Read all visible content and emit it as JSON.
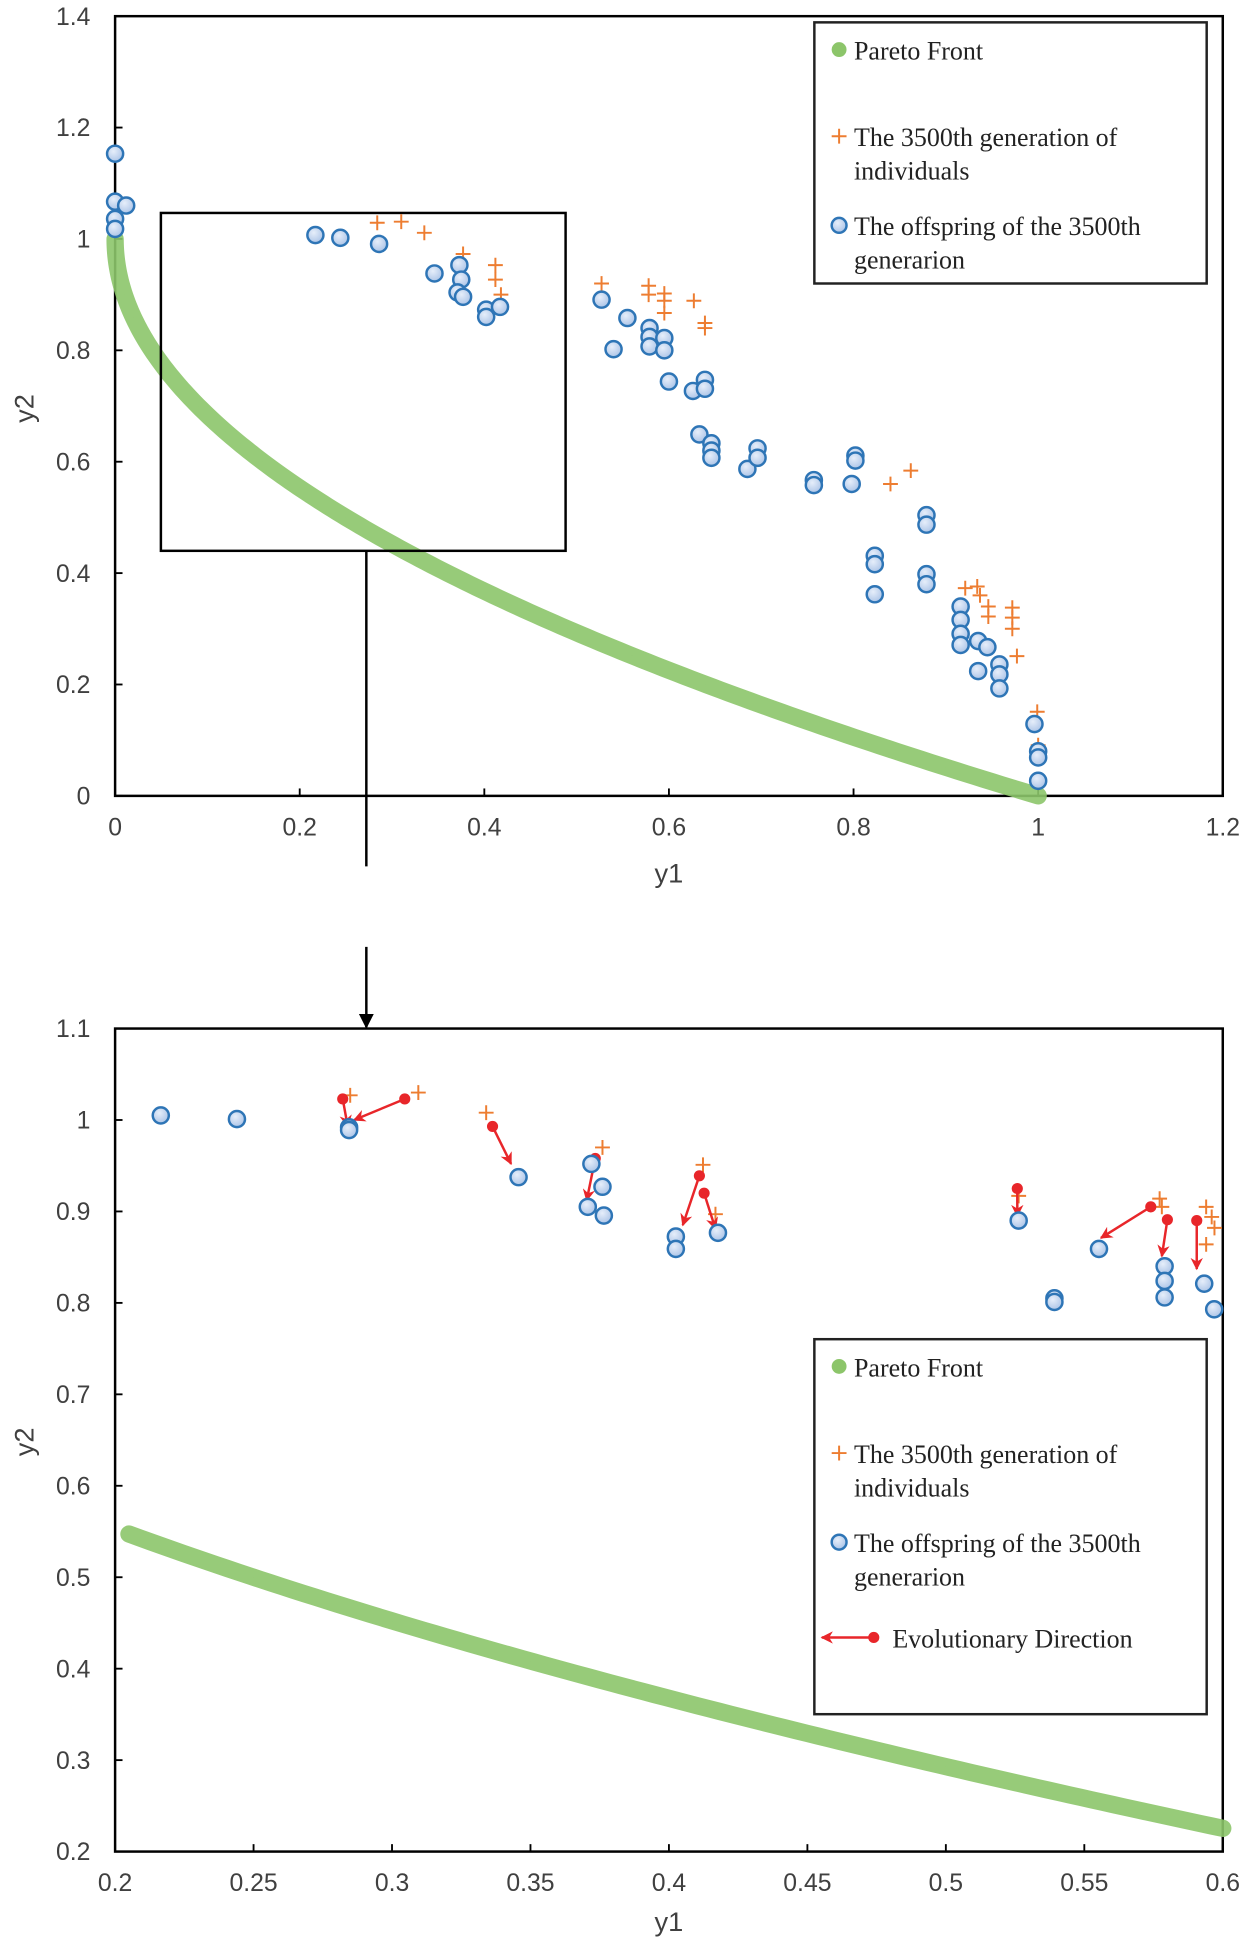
{
  "chart_data": [
    {
      "type": "scatter",
      "xlabel": "y1",
      "ylabel": "y2",
      "xlim": [
        0,
        1.2
      ],
      "ylim": [
        0,
        1.4
      ],
      "xticks": [
        "0",
        "0.2",
        "0.4",
        "0.6",
        "0.8",
        "1",
        "1.2"
      ],
      "yticks": [
        "0",
        "0.2",
        "0.4",
        "0.6",
        "0.8",
        "1",
        "1.2",
        "1.4"
      ],
      "grid": false,
      "legend_position": "top-right",
      "legend": [
        "Pareto Front",
        "The 3500th generation of individuals",
        "The offspring of the 3500th generarion"
      ],
      "zoom_box": {
        "x": [
          0.05,
          0.49
        ],
        "y": [
          0.44,
          1.05
        ]
      },
      "series": [
        {
          "name": "Pareto Front",
          "color": "#8cc56a",
          "points": [
            [
              0,
              1
            ],
            [
              0.01,
              0.9
            ],
            [
              0.02,
              0.859
            ],
            [
              0.04,
              0.8
            ],
            [
              0.06,
              0.755
            ],
            [
              0.09,
              0.7
            ],
            [
              0.12,
              0.654
            ],
            [
              0.16,
              0.6
            ],
            [
              0.2,
              0.553
            ],
            [
              0.25,
              0.5
            ],
            [
              0.3,
              0.452
            ],
            [
              0.36,
              0.4
            ],
            [
              0.42,
              0.352
            ],
            [
              0.49,
              0.3
            ],
            [
              0.56,
              0.252
            ],
            [
              0.64,
              0.2
            ],
            [
              0.72,
              0.151
            ],
            [
              0.81,
              0.1
            ],
            [
              0.9,
              0.051
            ],
            [
              1,
              0
            ]
          ]
        },
        {
          "name": "The 3500th generation of individuals",
          "color": "#ed7d31",
          "points": [
            [
              0.284,
              1.029
            ],
            [
              0.31,
              1.031
            ],
            [
              0.335,
              1.011
            ],
            [
              0.377,
              0.973
            ],
            [
              0.412,
              0.953
            ],
            [
              0.412,
              0.927
            ],
            [
              0.418,
              0.9
            ],
            [
              0.527,
              0.92
            ],
            [
              0.578,
              0.916
            ],
            [
              0.578,
              0.9
            ],
            [
              0.595,
              0.902
            ],
            [
              0.595,
              0.889
            ],
            [
              0.595,
              0.867
            ],
            [
              0.627,
              0.889
            ],
            [
              0.639,
              0.849
            ],
            [
              0.639,
              0.84
            ],
            [
              0.84,
              0.56
            ],
            [
              0.862,
              0.584
            ],
            [
              0.921,
              0.373
            ],
            [
              0.934,
              0.376
            ],
            [
              0.937,
              0.36
            ],
            [
              0.946,
              0.34
            ],
            [
              0.946,
              0.322
            ],
            [
              0.972,
              0.338
            ],
            [
              0.972,
              0.32
            ],
            [
              0.972,
              0.3
            ],
            [
              0.977,
              0.251
            ],
            [
              0.999,
              0.151
            ],
            [
              1.0,
              0.091
            ]
          ]
        },
        {
          "name": "The offspring of the 3500th generarion",
          "color": "#2e75b6",
          "points": [
            [
              0,
              1.153
            ],
            [
              0,
              1.067
            ],
            [
              0.012,
              1.06
            ],
            [
              0,
              1.036
            ],
            [
              0,
              1.018
            ],
            [
              0.217,
              1.007
            ],
            [
              0.244,
              1.002
            ],
            [
              0.286,
              0.991
            ],
            [
              0.346,
              0.938
            ],
            [
              0.373,
              0.953
            ],
            [
              0.375,
              0.927
            ],
            [
              0.371,
              0.904
            ],
            [
              0.377,
              0.896
            ],
            [
              0.402,
              0.873
            ],
            [
              0.402,
              0.86
            ],
            [
              0.417,
              0.878
            ],
            [
              0.527,
              0.891
            ],
            [
              0.54,
              0.802
            ],
            [
              0.555,
              0.858
            ],
            [
              0.579,
              0.84
            ],
            [
              0.579,
              0.824
            ],
            [
              0.579,
              0.807
            ],
            [
              0.595,
              0.822
            ],
            [
              0.595,
              0.8
            ],
            [
              0.6,
              0.744
            ],
            [
              0.626,
              0.727
            ],
            [
              0.639,
              0.747
            ],
            [
              0.639,
              0.731
            ],
            [
              0.633,
              0.649
            ],
            [
              0.646,
              0.633
            ],
            [
              0.646,
              0.62
            ],
            [
              0.646,
              0.607
            ],
            [
              0.685,
              0.587
            ],
            [
              0.696,
              0.624
            ],
            [
              0.696,
              0.607
            ],
            [
              0.757,
              0.567
            ],
            [
              0.757,
              0.558
            ],
            [
              0.802,
              0.611
            ],
            [
              0.802,
              0.602
            ],
            [
              0.798,
              0.56
            ],
            [
              0.879,
              0.504
            ],
            [
              0.879,
              0.487
            ],
            [
              0.823,
              0.431
            ],
            [
              0.823,
              0.416
            ],
            [
              0.823,
              0.362
            ],
            [
              0.879,
              0.398
            ],
            [
              0.879,
              0.38
            ],
            [
              0.916,
              0.34
            ],
            [
              0.916,
              0.316
            ],
            [
              0.916,
              0.291
            ],
            [
              0.916,
              0.271
            ],
            [
              0.935,
              0.278
            ],
            [
              0.945,
              0.267
            ],
            [
              0.935,
              0.224
            ],
            [
              0.958,
              0.236
            ],
            [
              0.958,
              0.218
            ],
            [
              0.958,
              0.193
            ],
            [
              0.996,
              0.129
            ],
            [
              1.0,
              0.08
            ],
            [
              1.0,
              0.069
            ],
            [
              1.0,
              0.027
            ]
          ]
        }
      ]
    },
    {
      "type": "scatter",
      "xlabel": "y1",
      "ylabel": "y2",
      "xlim": [
        0.2,
        0.6
      ],
      "ylim": [
        0.2,
        1.1
      ],
      "xticks": [
        "0.2",
        "0.25",
        "0.3",
        "0.35",
        "0.4",
        "0.45",
        "0.5",
        "0.55",
        "0.6"
      ],
      "yticks": [
        "0.2",
        "0.3",
        "0.4",
        "0.5",
        "0.6",
        "0.7",
        "0.8",
        "0.9",
        "1",
        "1.1"
      ],
      "grid": false,
      "legend_position": "bottom-right",
      "legend": [
        "Pareto Front",
        "The 3500th generation of individuals",
        "The offspring of the 3500th generarion",
        "Evolutionary Direction"
      ],
      "series": [
        {
          "name": "Pareto Front",
          "color": "#8cc56a",
          "points": [
            [
              0.205,
              0.547
            ],
            [
              0.25,
              0.5
            ],
            [
              0.3,
              0.452
            ],
            [
              0.35,
              0.408
            ],
            [
              0.4,
              0.368
            ],
            [
              0.45,
              0.329
            ],
            [
              0.5,
              0.293
            ],
            [
              0.55,
              0.258
            ],
            [
              0.6,
              0.225
            ]
          ]
        },
        {
          "name": "The 3500th generation of individuals",
          "color": "#ed7d31",
          "points": [
            [
              0.2849,
              1.027
            ],
            [
              0.3095,
              1.03
            ],
            [
              0.334,
              1.008
            ],
            [
              0.376,
              0.97
            ],
            [
              0.4123,
              0.951
            ],
            [
              0.4168,
              0.897
            ],
            [
              0.5263,
              0.917
            ],
            [
              0.5772,
              0.914
            ],
            [
              0.578,
              0.905
            ],
            [
              0.594,
              0.905
            ],
            [
              0.596,
              0.894
            ],
            [
              0.597,
              0.882
            ],
            [
              0.594,
              0.864
            ]
          ]
        },
        {
          "name": "The offspring of the 3500th generarion",
          "color": "#2e75b6",
          "points": [
            [
              0.2165,
              1.005
            ],
            [
              0.244,
              1.001
            ],
            [
              0.2845,
              0.992
            ],
            [
              0.2845,
              0.989
            ],
            [
              0.3457,
              0.9375
            ],
            [
              0.372,
              0.952
            ],
            [
              0.3707,
              0.905
            ],
            [
              0.376,
              0.927
            ],
            [
              0.3765,
              0.8955
            ],
            [
              0.4025,
              0.8725
            ],
            [
              0.4025,
              0.859
            ],
            [
              0.4177,
              0.8766
            ],
            [
              0.5263,
              0.89
            ],
            [
              0.5392,
              0.805
            ],
            [
              0.5392,
              0.801
            ],
            [
              0.5553,
              0.859
            ],
            [
              0.579,
              0.84
            ],
            [
              0.579,
              0.824
            ],
            [
              0.579,
              0.806
            ],
            [
              0.5933,
              0.821
            ],
            [
              0.5969,
              0.793
            ]
          ]
        },
        {
          "name": "Evolutionary Direction",
          "color": "#e8262a",
          "arrows": [
            [
              [
                0.2822,
                1.023
              ],
              [
                0.284,
                0.993
              ]
            ],
            [
              [
                0.3046,
                1.023
              ],
              [
                0.2863,
                1.0
              ]
            ],
            [
              [
                0.3363,
                0.993
              ],
              [
                0.343,
                0.952
              ]
            ],
            [
              [
                0.3734,
                0.958
              ],
              [
                0.3703,
                0.912
              ]
            ],
            [
              [
                0.411,
                0.939
              ],
              [
                0.405,
                0.885
              ]
            ],
            [
              [
                0.4127,
                0.92
              ],
              [
                0.4168,
                0.881
              ]
            ],
            [
              [
                0.5258,
                0.925
              ],
              [
                0.5258,
                0.895
              ]
            ],
            [
              [
                0.574,
                0.905
              ],
              [
                0.556,
                0.871
              ]
            ],
            [
              [
                0.58,
                0.891
              ],
              [
                0.578,
                0.851
              ]
            ],
            [
              [
                0.5906,
                0.89
              ],
              [
                0.5906,
                0.837
              ]
            ]
          ]
        }
      ]
    }
  ]
}
